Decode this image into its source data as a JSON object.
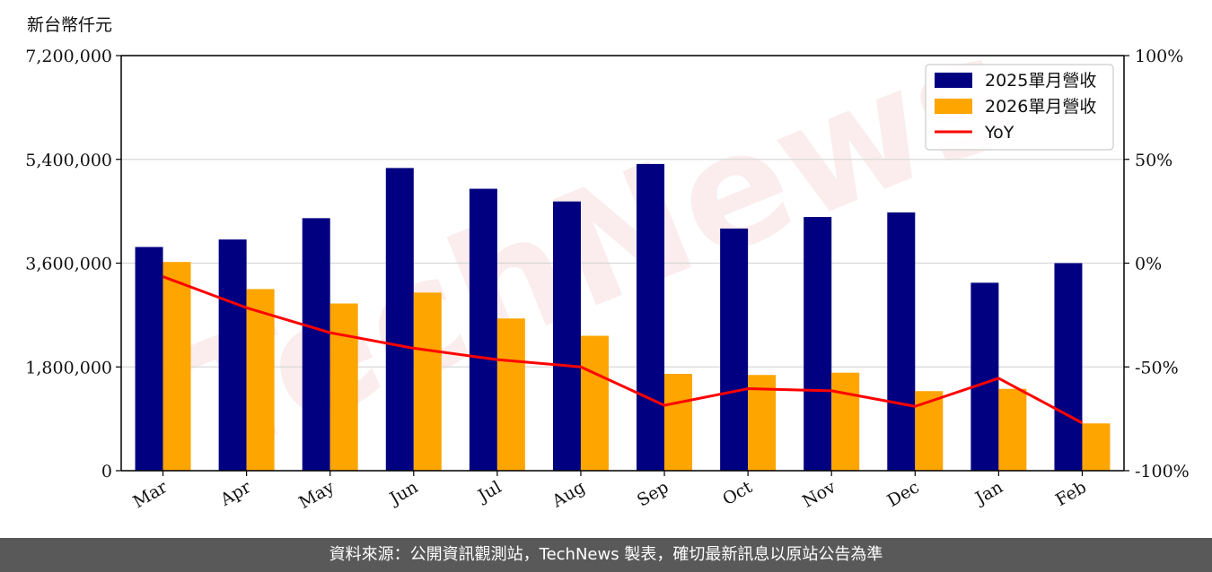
{
  "chart_data": {
    "type": "bar",
    "unit_label": "新台幣仟元",
    "categories": [
      "Mar",
      "Apr",
      "May",
      "Jun",
      "Jul",
      "Aug",
      "Sep",
      "Oct",
      "Nov",
      "Dec",
      "Jan",
      "Feb"
    ],
    "series": [
      {
        "name": "2025單月營收",
        "type": "bar",
        "axis": "left",
        "color": "#000080",
        "values": [
          3880000,
          4010000,
          4380000,
          5250000,
          4890000,
          4670000,
          5320000,
          4200000,
          4400000,
          4480000,
          3260000,
          3600000
        ]
      },
      {
        "name": "2026單月營收",
        "type": "bar",
        "axis": "left",
        "color": "#FFA500",
        "values": [
          3620000,
          3150000,
          2900000,
          3090000,
          2640000,
          2340000,
          1680000,
          1660000,
          1700000,
          1380000,
          1420000,
          820000
        ]
      },
      {
        "name": "YoY",
        "type": "line",
        "axis": "right",
        "color": "#FF0000",
        "values": [
          -6.5,
          -21.5,
          -33.5,
          -41,
          -46.5,
          -50,
          -68.5,
          -60.5,
          -61.5,
          -69,
          -55.5,
          -77
        ]
      }
    ],
    "y_left": {
      "ylim": [
        0,
        7200000
      ],
      "ticks": [
        0,
        1800000,
        3600000,
        5400000,
        7200000
      ],
      "tick_labels": [
        "0",
        "1,800,000",
        "3,600,000",
        "5,400,000",
        "7,200,000"
      ]
    },
    "y_right": {
      "ylim": [
        -100,
        100
      ],
      "ticks": [
        -100,
        -50,
        0,
        50,
        100
      ],
      "tick_labels": [
        "-100%",
        "-50%",
        "0%",
        "50%",
        "100%"
      ]
    },
    "grid": "horizontal",
    "legend_position": "top-right",
    "watermark": "TechNews"
  },
  "footer": {
    "text": "資料來源：公開資訊觀測站，TechNews 製表，確切最新訊息以原站公告為準"
  }
}
